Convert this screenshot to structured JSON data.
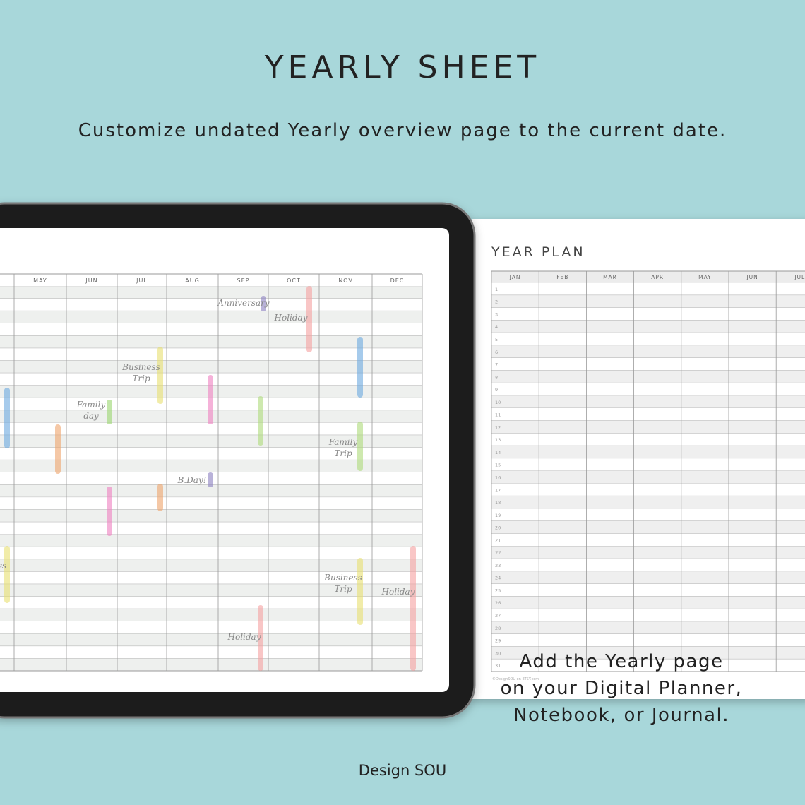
{
  "title": "YEARLY SHEET",
  "subtitle": "Customize undated Yearly overview page to the current date.",
  "tablet": {
    "months": [
      "MAY",
      "JUN",
      "JUL",
      "AUG",
      "SEP",
      "OCT",
      "NOV",
      "DEC"
    ],
    "events": [
      {
        "lines": [
          "Anniversary"
        ]
      },
      {
        "lines": [
          "Holiday"
        ]
      },
      {
        "lines": [
          "Business",
          "Trip"
        ]
      },
      {
        "lines": [
          "Family",
          "day"
        ]
      },
      {
        "lines": [
          "Family",
          "Trip"
        ]
      },
      {
        "lines": [
          "B.Day!"
        ]
      },
      {
        "lines": [
          "Business",
          "Trip"
        ]
      },
      {
        "lines": [
          "Holiday"
        ]
      },
      {
        "lines": [
          "Holiday"
        ]
      },
      {
        "lines": [
          "ss"
        ]
      }
    ]
  },
  "sheet": {
    "title": "YEAR PLAN",
    "months": [
      "JAN",
      "FEB",
      "MAR",
      "APR",
      "MAY",
      "JUN",
      "JUL"
    ],
    "days": [
      1,
      2,
      3,
      4,
      5,
      6,
      7,
      8,
      9,
      10,
      11,
      12,
      13,
      14,
      15,
      16,
      17,
      18,
      19,
      20,
      21,
      22,
      23,
      24,
      25,
      26,
      27,
      28,
      29,
      30,
      31
    ],
    "credit": "©DesignSOU on ETSY.com"
  },
  "caption": [
    "Add the Yearly page",
    "on your Digital Planner,",
    "Notebook, or Journal."
  ],
  "footer": "Design SOU"
}
